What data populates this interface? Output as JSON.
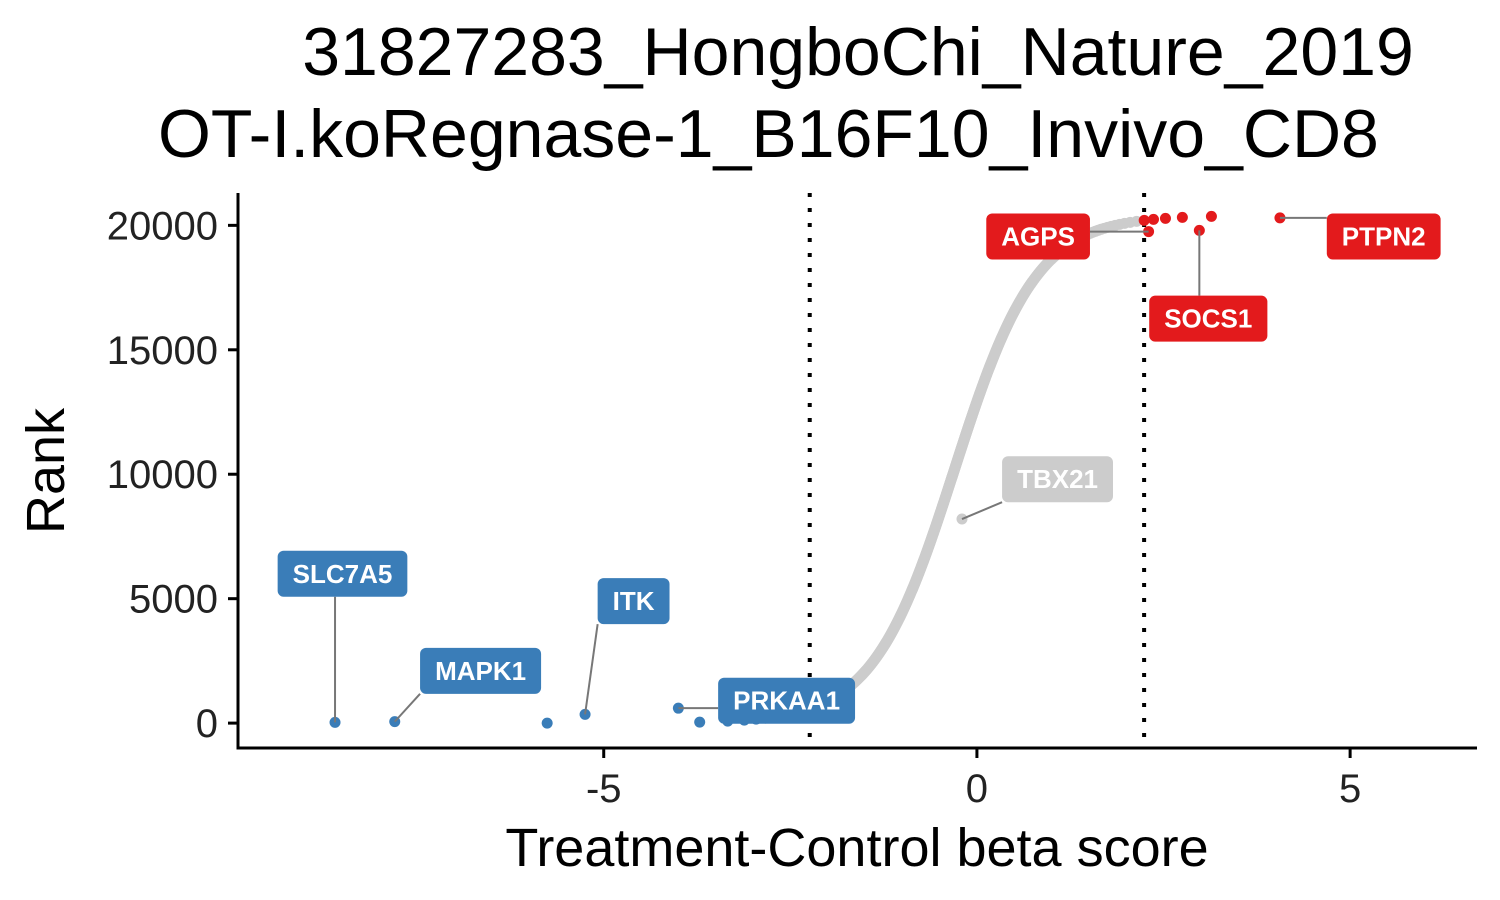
{
  "chart_data": {
    "type": "scatter",
    "title_lines": [
      "31827283_HongboChi_Nature_2019",
      "OT-I.koRegnase-1_B16F10_Invivo_CD8"
    ],
    "xlabel": "Treatment-Control beta score",
    "ylabel": "Rank",
    "xlim": [
      -9.9,
      6.7
    ],
    "ylim": [
      -1000,
      21300
    ],
    "x_ticks": [
      -5,
      0,
      5
    ],
    "x_tick_labels": [
      "-5",
      "0",
      "5"
    ],
    "y_ticks": [
      0,
      5000,
      10000,
      15000,
      20000
    ],
    "y_tick_labels": [
      "0",
      "5000",
      "10000",
      "15000",
      "20000"
    ],
    "cutoffs": [
      -2.24,
      2.24
    ],
    "total_genes": 20400,
    "curve_center": -0.3,
    "curve_scale": 0.55,
    "colors": {
      "negative": "#3A7DB8",
      "neutral": "#CCCCCC",
      "positive": "#E31A1C"
    },
    "grid": false,
    "legend": "none",
    "highlighted_genes": [
      {
        "name": "SLC7A5",
        "x": -8.6,
        "y": 30,
        "group": "negative",
        "label_x": -8.5,
        "label_y": 6000
      },
      {
        "name": "MAPK1",
        "x": -7.8,
        "y": 60,
        "group": "negative",
        "label_x": -6.65,
        "label_y": 2100
      },
      {
        "name": "ITK",
        "x": -5.25,
        "y": 350,
        "group": "negative",
        "label_x": -4.6,
        "label_y": 4900
      },
      {
        "name": "PRKAA1",
        "x": -4.0,
        "y": 600,
        "group": "negative",
        "label_x": -2.55,
        "label_y": 900
      },
      {
        "name": "TBX21",
        "x": -0.2,
        "y": 8200,
        "group": "neutral",
        "label_x": 1.08,
        "label_y": 9800
      },
      {
        "name": "AGPS",
        "x": 2.3,
        "y": 19750,
        "group": "positive",
        "label_x": 0.82,
        "label_y": 19550
      },
      {
        "name": "SOCS1",
        "x": 2.98,
        "y": 19800,
        "group": "positive",
        "label_x": 3.1,
        "label_y": 16250
      },
      {
        "name": "PTPN2",
        "x": 4.06,
        "y": 20300,
        "group": "positive",
        "label_x": 5.45,
        "label_y": 19550
      }
    ]
  }
}
